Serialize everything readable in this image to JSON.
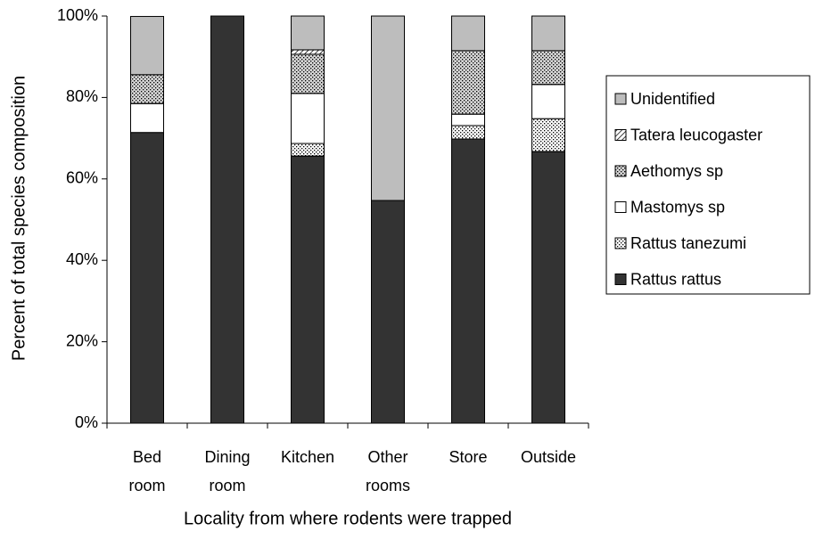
{
  "chart_data": {
    "type": "stacked_bar",
    "x_label": "Locality from where rodents were trapped",
    "y_label": "Percent of total species composition",
    "categories": [
      "Bed room",
      "Dining room",
      "Kitchen",
      "Other rooms",
      "Store",
      "Outside"
    ],
    "series": [
      {
        "name": "Rattus rattus",
        "color": "#333333",
        "pattern": "solid",
        "values": [
          71.4,
          100,
          65.6,
          54.7,
          69.8,
          66.7
        ]
      },
      {
        "name": "Rattus tanezumi",
        "color": "#ffffff",
        "pattern": "dots",
        "values": [
          0,
          0,
          3.1,
          0,
          3.3,
          8.1
        ]
      },
      {
        "name": "Mastomys sp",
        "color": "#ffffff",
        "pattern": "solid",
        "values": [
          7.1,
          0,
          12.3,
          0,
          2.8,
          8.4
        ]
      },
      {
        "name": "Aethomys sp",
        "color": "#d4d4d4",
        "pattern": "dots",
        "values": [
          7.1,
          0,
          9.6,
          0,
          15.6,
          8.3
        ]
      },
      {
        "name": "Tatera leucogaster",
        "color": "#ffffff",
        "pattern": "hatch",
        "values": [
          0,
          0,
          1.1,
          0,
          0,
          0
        ]
      },
      {
        "name": "Unidentified",
        "color": "#bdbdbd",
        "pattern": "solid",
        "values": [
          14.3,
          0,
          8.3,
          45.3,
          8.5,
          8.5
        ]
      }
    ],
    "ylim": [
      0,
      100
    ],
    "yticks": [
      {
        "value": 0,
        "label": "0%"
      },
      {
        "value": 20,
        "label": "20%"
      },
      {
        "value": 40,
        "label": "40%"
      },
      {
        "value": 60,
        "label": "60%"
      },
      {
        "value": 80,
        "label": "80%"
      },
      {
        "value": 100,
        "label": "100%"
      }
    ],
    "legend": "right",
    "legend_order": "reverse"
  }
}
